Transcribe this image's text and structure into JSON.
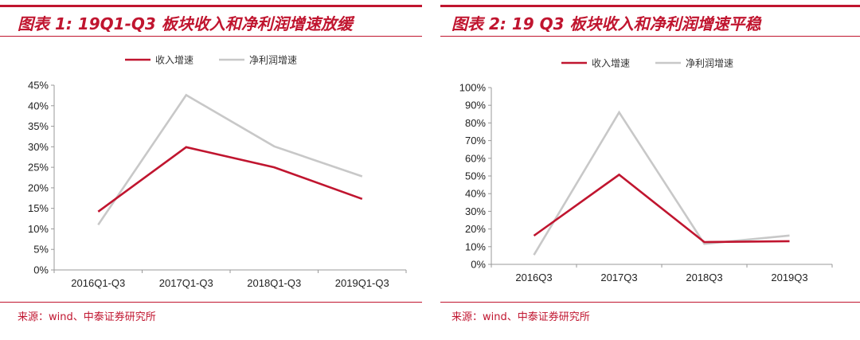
{
  "colors": {
    "accent": "#c0152f",
    "revenue": "#c0152f",
    "profit": "#c8c8c8",
    "axis": "#999999"
  },
  "left": {
    "title": "图表 1:  19Q1-Q3 板块收入和净利润增速放缓",
    "source": "来源：wind、中泰证券研究所"
  },
  "right": {
    "title": "图表 2:  19 Q3 板块收入和净利润增速平稳",
    "source": "来源：wind、中泰证券研究所"
  },
  "chart_data": [
    {
      "type": "line",
      "title": "19Q1-Q3 板块收入和净利润增速放缓",
      "categories": [
        "2016Q1-Q3",
        "2017Q1-Q3",
        "2018Q1-Q3",
        "2019Q1-Q3"
      ],
      "series": [
        {
          "name": "收入增速",
          "values": [
            14.2,
            29.9,
            25.0,
            17.3
          ]
        },
        {
          "name": "净利润增速",
          "values": [
            11.0,
            42.6,
            30.1,
            22.8
          ]
        }
      ],
      "ylim": [
        0,
        45
      ],
      "ytick_step": 5,
      "yticks": [
        "0%",
        "5%",
        "10%",
        "15%",
        "20%",
        "25%",
        "30%",
        "35%",
        "40%",
        "45%"
      ],
      "legend": "top-center"
    },
    {
      "type": "line",
      "title": "19 Q3 板块收入和净利润增速平稳",
      "categories": [
        "2016Q3",
        "2017Q3",
        "2018Q3",
        "2019Q3"
      ],
      "series": [
        {
          "name": "收入增速",
          "values": [
            16.2,
            50.7,
            12.6,
            13.1
          ]
        },
        {
          "name": "净利润增速",
          "values": [
            5.3,
            86.0,
            11.6,
            16.3
          ]
        }
      ],
      "ylim": [
        0,
        100
      ],
      "ytick_step": 10,
      "yticks": [
        "0%",
        "10%",
        "20%",
        "30%",
        "40%",
        "50%",
        "60%",
        "70%",
        "80%",
        "90%",
        "100%"
      ],
      "legend": "top-center"
    }
  ]
}
